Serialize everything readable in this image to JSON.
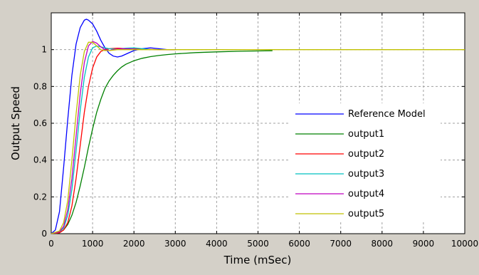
{
  "chart_data": {
    "type": "line",
    "title": "",
    "xlabel": "Time (mSec)",
    "ylabel": "Output Speed",
    "xlim": [
      0,
      10000
    ],
    "ylim": [
      0,
      1.2
    ],
    "xticks": [
      0,
      1000,
      2000,
      3000,
      4000,
      5000,
      6000,
      7000,
      8000,
      9000,
      10000
    ],
    "yticks": [
      0,
      0.2,
      0.4,
      0.6,
      0.8,
      1
    ],
    "xtick_labels": [
      "0",
      "1000",
      "2000",
      "3000",
      "4000",
      "5000",
      "6000",
      "7000",
      "8000",
      "9000",
      "10000"
    ],
    "ytick_labels": [
      "0",
      "0.2",
      "0.4",
      "0.6",
      "0.8",
      "1"
    ],
    "grid": true,
    "legend_position": "lower-right",
    "series": [
      {
        "name": "Reference Model",
        "color": "#0000ff",
        "x": [
          0,
          100,
          200,
          300,
          400,
          500,
          600,
          700,
          800,
          850,
          900,
          1000,
          1100,
          1200,
          1300,
          1400,
          1500,
          1600,
          1700,
          1800,
          1900,
          2000,
          2200,
          2400,
          2600,
          2800,
          3000
        ],
        "y": [
          0,
          0.02,
          0.12,
          0.36,
          0.62,
          0.86,
          1.03,
          1.12,
          1.16,
          1.165,
          1.16,
          1.14,
          1.1,
          1.05,
          1.01,
          0.98,
          0.965,
          0.96,
          0.965,
          0.975,
          0.985,
          0.995,
          1.005,
          1.01,
          1.005,
          1.0,
          1.0
        ]
      },
      {
        "name": "output1",
        "color": "#008000",
        "x": [
          0,
          100,
          200,
          300,
          400,
          500,
          600,
          700,
          800,
          900,
          1000,
          1100,
          1200,
          1300,
          1400,
          1500,
          1600,
          1700,
          1800,
          2000,
          2200,
          2400,
          2600,
          2800,
          3000,
          3500,
          4000,
          4500,
          5000,
          5350
        ],
        "y": [
          0,
          0,
          0.005,
          0.02,
          0.05,
          0.1,
          0.17,
          0.26,
          0.36,
          0.47,
          0.57,
          0.66,
          0.73,
          0.79,
          0.83,
          0.86,
          0.885,
          0.905,
          0.92,
          0.94,
          0.953,
          0.962,
          0.968,
          0.973,
          0.977,
          0.984,
          0.988,
          0.991,
          0.993,
          0.994
        ]
      },
      {
        "name": "output2",
        "color": "#ff0000",
        "x": [
          0,
          200,
          300,
          400,
          500,
          600,
          700,
          800,
          900,
          1000,
          1100,
          1200,
          1300,
          1400,
          1600,
          1800,
          2000,
          2200,
          2400,
          2600,
          2800,
          3000
        ],
        "y": [
          0,
          0.005,
          0.02,
          0.06,
          0.15,
          0.3,
          0.48,
          0.66,
          0.8,
          0.9,
          0.96,
          0.99,
          1.0,
          1.005,
          1.008,
          1.006,
          1.004,
          1.002,
          1.001,
          1.0,
          1.0,
          1.0
        ]
      },
      {
        "name": "output3",
        "color": "#00c0c0",
        "x": [
          0,
          200,
          300,
          400,
          500,
          600,
          700,
          800,
          900,
          1000,
          1100,
          1200,
          1300,
          1400,
          1600,
          1800,
          2000,
          2200,
          2400
        ],
        "y": [
          0,
          0.01,
          0.03,
          0.1,
          0.24,
          0.45,
          0.67,
          0.85,
          0.96,
          1.01,
          1.02,
          1.015,
          1.01,
          1.005,
          1.002,
          1.008,
          1.01,
          1.005,
          1.0
        ]
      },
      {
        "name": "output4",
        "color": "#c000c0",
        "x": [
          0,
          200,
          300,
          400,
          500,
          600,
          700,
          800,
          900,
          1000,
          1100,
          1200,
          1300,
          1400,
          1500,
          1700,
          1900,
          2100
        ],
        "y": [
          0,
          0.01,
          0.04,
          0.13,
          0.3,
          0.53,
          0.76,
          0.93,
          1.02,
          1.045,
          1.035,
          1.015,
          1.0,
          0.995,
          1.0,
          1.005,
          1.005,
          1.0
        ]
      },
      {
        "name": "output5",
        "color": "#c0c000",
        "x": [
          0,
          200,
          300,
          400,
          500,
          600,
          700,
          800,
          900,
          1000,
          1100,
          1200,
          1300,
          1400,
          1600,
          2000,
          3000,
          4000,
          5000,
          6000,
          7000,
          8000,
          9000,
          10000
        ],
        "y": [
          0,
          0.015,
          0.06,
          0.18,
          0.4,
          0.65,
          0.86,
          0.99,
          1.04,
          1.04,
          1.02,
          1.0,
          0.995,
          0.995,
          1.0,
          1.0,
          1.0,
          1.0,
          1.0,
          1.0,
          1.0,
          1.0,
          1.0,
          1.0
        ]
      }
    ]
  }
}
